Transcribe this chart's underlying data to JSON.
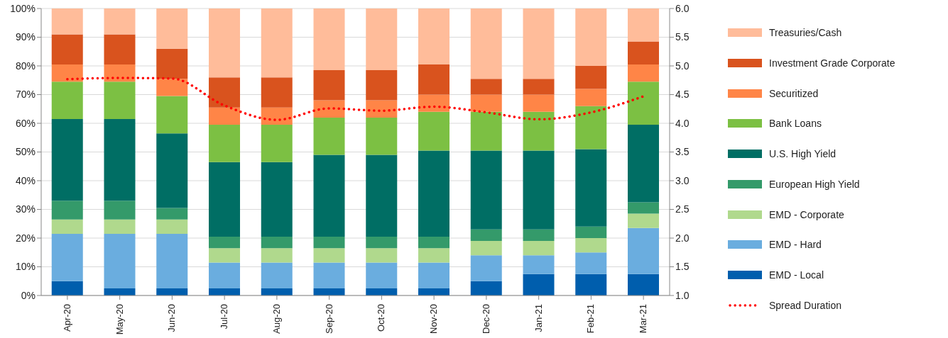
{
  "chart_data": {
    "type": "bar",
    "stacked": true,
    "categories": [
      "Apr-20",
      "May-20",
      "Jun-20",
      "Jul-20",
      "Aug-20",
      "Sep-20",
      "Oct-20",
      "Nov-20",
      "Dec-20",
      "Jan-21",
      "Feb-21",
      "Mar-21"
    ],
    "series": [
      {
        "name": "EMD - Local",
        "color": "#005ead",
        "values": [
          5,
          2.5,
          2.5,
          2.5,
          2.5,
          2.5,
          2.5,
          2.5,
          5,
          7.5,
          7.5,
          7.5
        ]
      },
      {
        "name": "EMD - Hard",
        "color": "#6aaddf",
        "values": [
          16.5,
          19,
          19,
          9,
          9,
          9,
          9,
          9,
          9,
          6.5,
          7.5,
          16
        ]
      },
      {
        "name": "EMD - Corporate",
        "color": "#b0d98d",
        "values": [
          5,
          5,
          5,
          5,
          5,
          5,
          5,
          5,
          5,
          5,
          5,
          5
        ]
      },
      {
        "name": "European High Yield",
        "color": "#349a6a",
        "values": [
          6.5,
          6.5,
          4,
          4,
          4,
          4,
          4,
          4,
          4,
          4,
          4,
          4
        ]
      },
      {
        "name": "U.S. High Yield",
        "color": "#006e64",
        "values": [
          28.5,
          28.5,
          26,
          26,
          26,
          28.5,
          28.5,
          30,
          27.5,
          27.5,
          27,
          27
        ]
      },
      {
        "name": "Bank Loans",
        "color": "#7cc043",
        "values": [
          13,
          13,
          13,
          13,
          13,
          13,
          13,
          13.5,
          13.5,
          13.5,
          15,
          15
        ]
      },
      {
        "name": "Securitized",
        "color": "#ff8547",
        "values": [
          6,
          6,
          6,
          6,
          6,
          6,
          6,
          6,
          6,
          6,
          6,
          6
        ]
      },
      {
        "name": "Investment Grade Corporate",
        "color": "#d9531e",
        "values": [
          10.5,
          10.5,
          10.5,
          10.5,
          10.5,
          10.5,
          10.5,
          10.5,
          5.5,
          5.5,
          8,
          8
        ]
      },
      {
        "name": "Treasuries/Cash",
        "color": "#ffbc9a",
        "values": [
          9,
          9,
          14,
          24,
          24,
          21.5,
          21.5,
          19.5,
          24.5,
          24.5,
          20,
          11.5
        ]
      },
      {
        "name": "Spread Duration",
        "type": "line",
        "axis": "y2",
        "color": "#ff0000",
        "line_style": "dotted",
        "marker": "none",
        "values": [
          4.77,
          4.79,
          4.78,
          4.31,
          4.06,
          4.26,
          4.22,
          4.29,
          4.19,
          4.07,
          4.19,
          4.47
        ]
      }
    ],
    "ylim": [
      0,
      100
    ],
    "yticks": [
      {
        "value": 0,
        "label": "0%"
      },
      {
        "value": 10,
        "label": "10%"
      },
      {
        "value": 20,
        "label": "20%"
      },
      {
        "value": 30,
        "label": "30%"
      },
      {
        "value": 40,
        "label": "40%"
      },
      {
        "value": 50,
        "label": "50%"
      },
      {
        "value": 60,
        "label": "60%"
      },
      {
        "value": 70,
        "label": "70%"
      },
      {
        "value": 80,
        "label": "80%"
      },
      {
        "value": 90,
        "label": "90%"
      },
      {
        "value": 100,
        "label": "100%"
      }
    ],
    "y2lim": [
      1,
      6
    ],
    "y2ticks": [
      {
        "value": 1,
        "label": "1.0"
      },
      {
        "value": 1.5,
        "label": "1.5"
      },
      {
        "value": 2,
        "label": "2.0"
      },
      {
        "value": 2.5,
        "label": "2.5"
      },
      {
        "value": 3,
        "label": "3.0"
      },
      {
        "value": 3.5,
        "label": "3.5"
      },
      {
        "value": 4,
        "label": "4.0"
      },
      {
        "value": 4.5,
        "label": "4.5"
      },
      {
        "value": 5,
        "label": "5.0"
      },
      {
        "value": 5.5,
        "label": "5.5"
      },
      {
        "value": 6,
        "label": "6.0"
      }
    ],
    "grid": "y",
    "legend": "right"
  }
}
